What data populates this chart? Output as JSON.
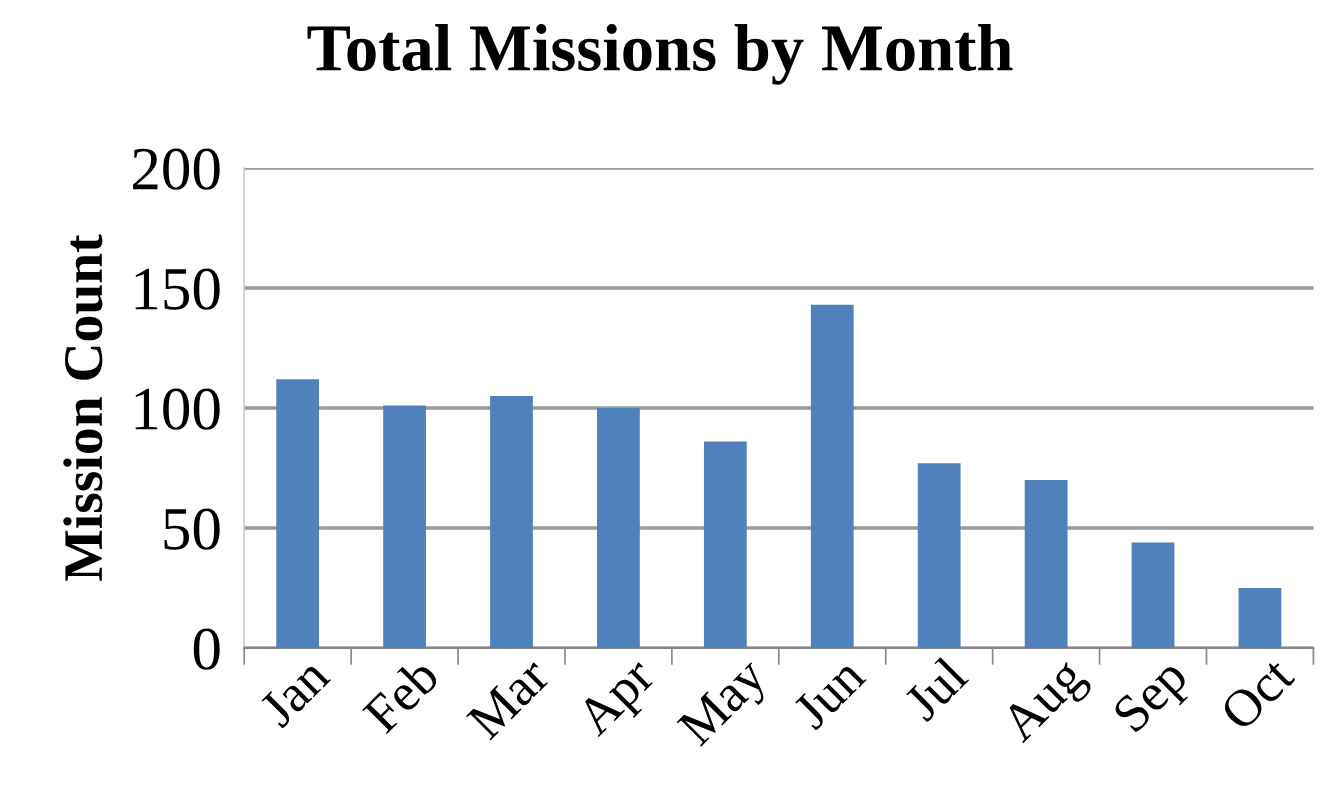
{
  "chart_data": {
    "type": "bar",
    "title": "Total Missions by Month",
    "ylabel": "Mission Count",
    "categories": [
      "Jan",
      "Feb",
      "Mar",
      "Apr",
      "May",
      "Jun",
      "Jul",
      "Aug",
      "Sep",
      "Oct"
    ],
    "values": [
      112,
      101,
      105,
      100,
      86,
      143,
      77,
      70,
      44,
      25
    ],
    "color": "#4f81bd",
    "ylim": [
      0,
      200
    ],
    "yticks": [
      0,
      50,
      100,
      150,
      200
    ],
    "grid": "y"
  }
}
